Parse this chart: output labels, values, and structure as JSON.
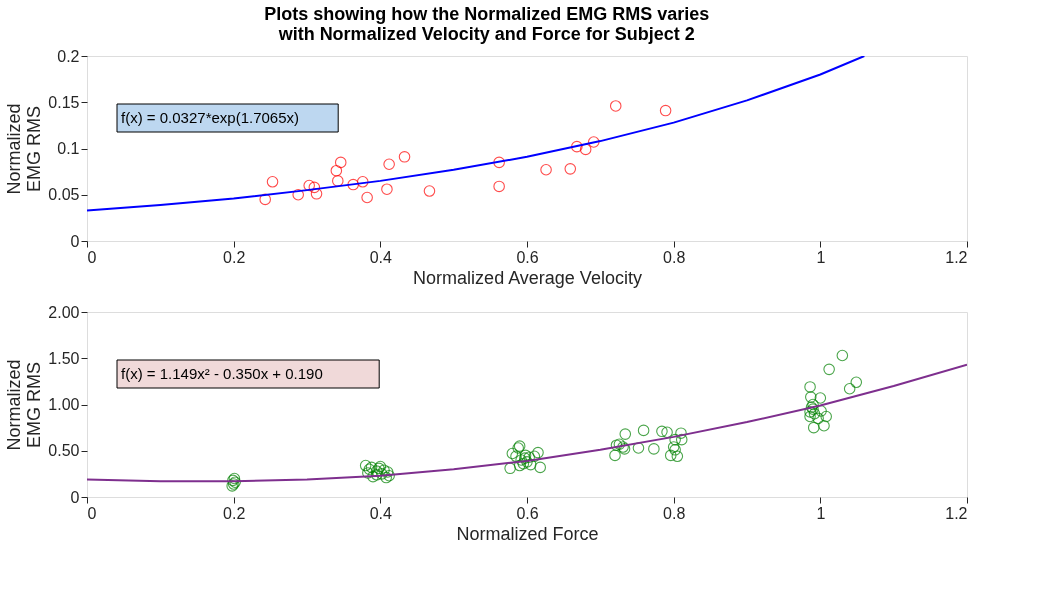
{
  "chart_data": [
    {
      "type": "scatter",
      "title": [
        "Plots showing how the Normalized EMG RMS varies",
        "with Normalized Velocity and Force for Subject 2"
      ],
      "xlabel": "Normalized Average Velocity",
      "ylabel": "Normalized EMG RMS",
      "xlim": [
        0,
        1.2
      ],
      "ylim": [
        0,
        0.2
      ],
      "xticks": [
        0,
        0.2,
        0.4,
        0.6,
        0.8,
        1,
        1.2
      ],
      "yticks": [
        0,
        0.05,
        0.1,
        0.15,
        0.2
      ],
      "grid": false,
      "annotations": [
        "f(x) = 0.0327*exp(1.7065x)"
      ],
      "series": [
        {
          "type": "scatter",
          "marker": "circle",
          "color": "#ff0000",
          "x": [
            0.243,
            0.253,
            0.288,
            0.303,
            0.31,
            0.313,
            0.34,
            0.342,
            0.346,
            0.363,
            0.376,
            0.382,
            0.409,
            0.412,
            0.433,
            0.467,
            0.562,
            0.562,
            0.626,
            0.659,
            0.668,
            0.68,
            0.691,
            0.721,
            0.789
          ],
          "values": [
            0.045,
            0.064,
            0.05,
            0.06,
            0.058,
            0.051,
            0.076,
            0.065,
            0.085,
            0.061,
            0.064,
            0.047,
            0.056,
            0.083,
            0.091,
            0.054,
            0.085,
            0.059,
            0.077,
            0.078,
            0.102,
            0.099,
            0.107,
            0.146,
            0.141
          ]
        },
        {
          "type": "line",
          "marker": "none",
          "color": "#0000ff",
          "x": [
            0,
            0.1,
            0.2,
            0.3,
            0.4,
            0.5,
            0.6,
            0.7,
            0.8,
            0.9,
            1.0,
            1.06
          ],
          "values": [
            0.033,
            0.039,
            0.046,
            0.055,
            0.065,
            0.077,
            0.091,
            0.108,
            0.128,
            0.152,
            0.18,
            0.2
          ]
        }
      ]
    },
    {
      "type": "scatter",
      "xlabel": "Normalized Force",
      "ylabel": "Normalized EMG RMS",
      "xlim": [
        0,
        1.2
      ],
      "ylim": [
        0,
        2
      ],
      "xticks": [
        0,
        0.2,
        0.4,
        0.6,
        0.8,
        1,
        1.2
      ],
      "yticks": [
        0,
        {
          "value": 0.5,
          "label": "0.50"
        },
        {
          "value": 1,
          "label": "1.00"
        },
        {
          "value": 1.5,
          "label": "1.50"
        },
        {
          "value": 2,
          "label": "2.00"
        }
      ],
      "grid": false,
      "annotations": [
        "f(x) = 1.149x² - 0.350x + 0.190"
      ],
      "series": [
        {
          "type": "scatter",
          "marker": "circle",
          "color": "#008000",
          "x": [
            0.198,
            0.2,
            0.202,
            0.199,
            0.201,
            0.38,
            0.385,
            0.383,
            0.39,
            0.395,
            0.398,
            0.4,
            0.402,
            0.405,
            0.408,
            0.41,
            0.412,
            0.395,
            0.388,
            0.577,
            0.58,
            0.585,
            0.588,
            0.59,
            0.592,
            0.595,
            0.597,
            0.6,
            0.598,
            0.603,
            0.605,
            0.61,
            0.615,
            0.618,
            0.59,
            0.72,
            0.722,
            0.726,
            0.731,
            0.734,
            0.733,
            0.752,
            0.759,
            0.773,
            0.784,
            0.791,
            0.796,
            0.8,
            0.802,
            0.805,
            0.81,
            0.811,
            0.802,
            0.986,
            0.987,
            1.0,
            0.99,
            0.988,
            0.986,
            0.992,
            0.986,
            0.997,
            1.008,
            0.991,
            1.005,
            1.012,
            1.03,
            1.04,
            1.049,
            1.001,
            0.99
          ],
          "values": [
            0.12,
            0.14,
            0.16,
            0.18,
            0.2,
            0.34,
            0.3,
            0.26,
            0.22,
            0.28,
            0.31,
            0.33,
            0.25,
            0.29,
            0.21,
            0.27,
            0.23,
            0.24,
            0.32,
            0.31,
            0.47,
            0.44,
            0.53,
            0.55,
            0.4,
            0.36,
            0.42,
            0.38,
            0.45,
            0.43,
            0.35,
            0.44,
            0.48,
            0.32,
            0.34,
            0.45,
            0.56,
            0.57,
            0.54,
            0.68,
            0.52,
            0.53,
            0.72,
            0.52,
            0.71,
            0.7,
            0.45,
            0.54,
            0.62,
            0.44,
            0.69,
            0.62,
            0.51,
            1.19,
            1.08,
            1.07,
            1.0,
            0.97,
            0.92,
            0.9,
            0.87,
            0.85,
            0.87,
            0.75,
            0.77,
            1.38,
            1.53,
            1.17,
            1.24,
            0.93,
            0.95
          ]
        },
        {
          "type": "line",
          "marker": "none",
          "color": "#7e2f8e",
          "x": [
            0,
            0.1,
            0.2,
            0.3,
            0.4,
            0.5,
            0.6,
            0.7,
            0.8,
            0.9,
            1.0,
            1.1,
            1.2
          ],
          "values": [
            0.19,
            0.17,
            0.17,
            0.19,
            0.23,
            0.3,
            0.39,
            0.51,
            0.65,
            0.81,
            0.99,
            1.2,
            1.43
          ]
        }
      ]
    }
  ]
}
